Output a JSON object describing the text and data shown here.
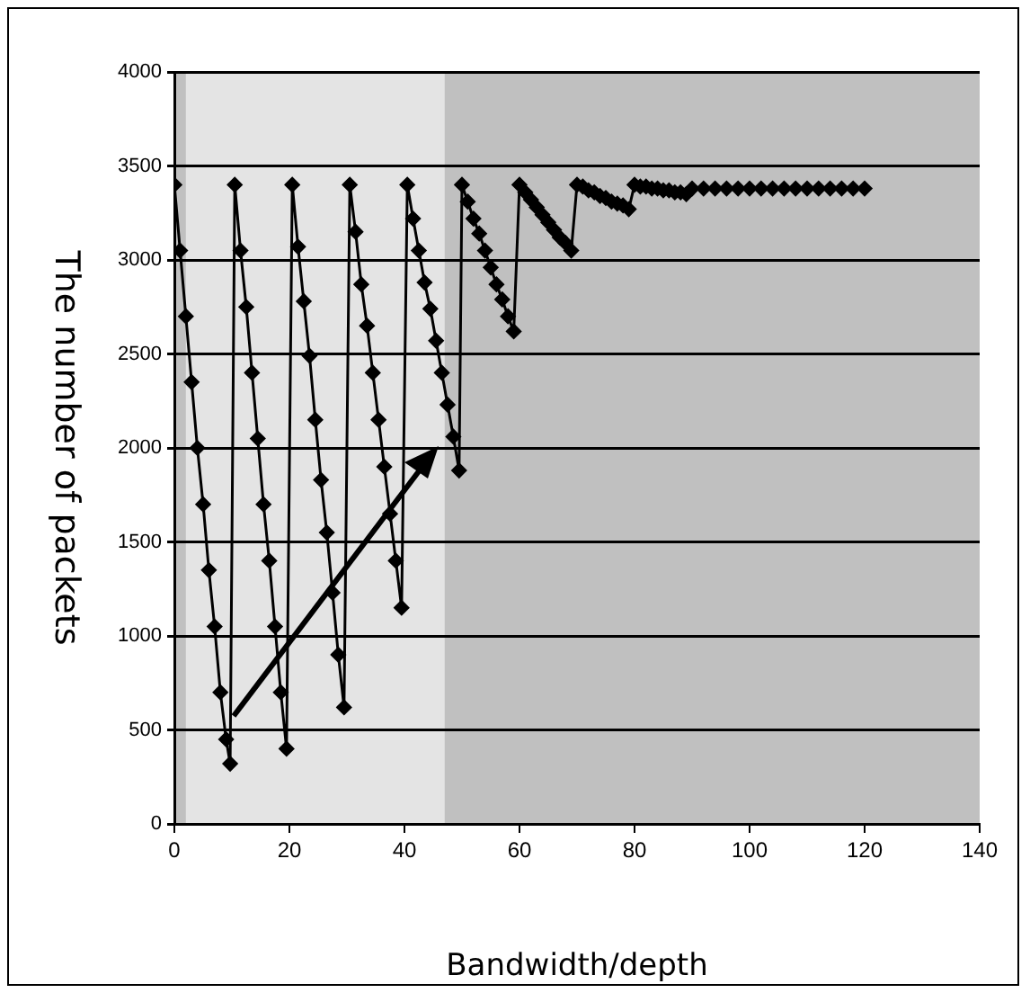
{
  "chart_data": {
    "type": "line",
    "xlabel": "Bandwidth/depth",
    "ylabel": "The number of packets",
    "xlim": [
      0,
      140
    ],
    "xticks": [
      0,
      20,
      40,
      60,
      80,
      100,
      120,
      140
    ],
    "ylim": [
      0,
      4000
    ],
    "yticks": [
      0,
      500,
      1000,
      1500,
      2000,
      2500,
      3000,
      3500,
      4000
    ],
    "grid": "y",
    "legend": false,
    "marker": "diamond",
    "line_style": "solid",
    "bands": [
      {
        "axis": "x",
        "from": 2,
        "to": 47,
        "color": "#e4e4e4"
      }
    ],
    "series": [
      {
        "color": "#000000",
        "x": [
          0,
          1,
          2,
          3,
          4,
          5,
          6,
          7,
          8,
          9,
          9.7,
          10.5,
          11.5,
          12.5,
          13.5,
          14.5,
          15.5,
          16.5,
          17.5,
          18.5,
          19.5,
          20.5,
          21.5,
          22.5,
          23.5,
          24.5,
          25.5,
          26.5,
          27.5,
          28.5,
          29.5,
          30.5,
          31.5,
          32.5,
          33.5,
          34.5,
          35.5,
          36.5,
          37.5,
          38.5,
          39.5,
          40.5,
          41.5,
          42.5,
          43.5,
          44.5,
          45.5,
          46.5,
          47.5,
          48.5,
          49.5,
          50,
          51,
          52,
          53,
          54,
          55,
          56,
          57,
          58,
          59,
          60,
          61,
          62,
          63,
          64,
          65,
          66,
          67,
          68,
          69,
          70,
          71,
          72,
          73,
          74,
          75,
          76,
          77,
          78,
          79,
          80,
          81,
          82,
          83,
          84,
          85,
          86,
          87,
          88,
          89,
          90,
          92,
          94,
          96,
          98,
          100,
          102,
          104,
          106,
          108,
          110,
          112,
          114,
          116,
          118,
          120
        ],
        "values": [
          3400,
          3050,
          2700,
          2350,
          2000,
          1700,
          1350,
          1050,
          700,
          450,
          320,
          3400,
          3050,
          2750,
          2400,
          2050,
          1700,
          1400,
          1050,
          700,
          400,
          3400,
          3070,
          2780,
          2490,
          2150,
          1830,
          1550,
          1230,
          900,
          620,
          3400,
          3150,
          2870,
          2650,
          2400,
          2150,
          1900,
          1650,
          1400,
          1150,
          3400,
          3220,
          3050,
          2880,
          2740,
          2570,
          2400,
          2230,
          2060,
          1880,
          3400,
          3310,
          3220,
          3140,
          3050,
          2960,
          2870,
          2790,
          2700,
          2620,
          3400,
          3360,
          3320,
          3280,
          3240,
          3200,
          3160,
          3120,
          3090,
          3050,
          3400,
          3390,
          3370,
          3360,
          3340,
          3330,
          3310,
          3300,
          3290,
          3270,
          3400,
          3390,
          3390,
          3380,
          3380,
          3370,
          3370,
          3360,
          3360,
          3350,
          3380,
          3380,
          3380,
          3380,
          3380,
          3380,
          3380,
          3380,
          3380,
          3380,
          3380,
          3380,
          3380,
          3380,
          3380,
          3380
        ]
      }
    ]
  }
}
